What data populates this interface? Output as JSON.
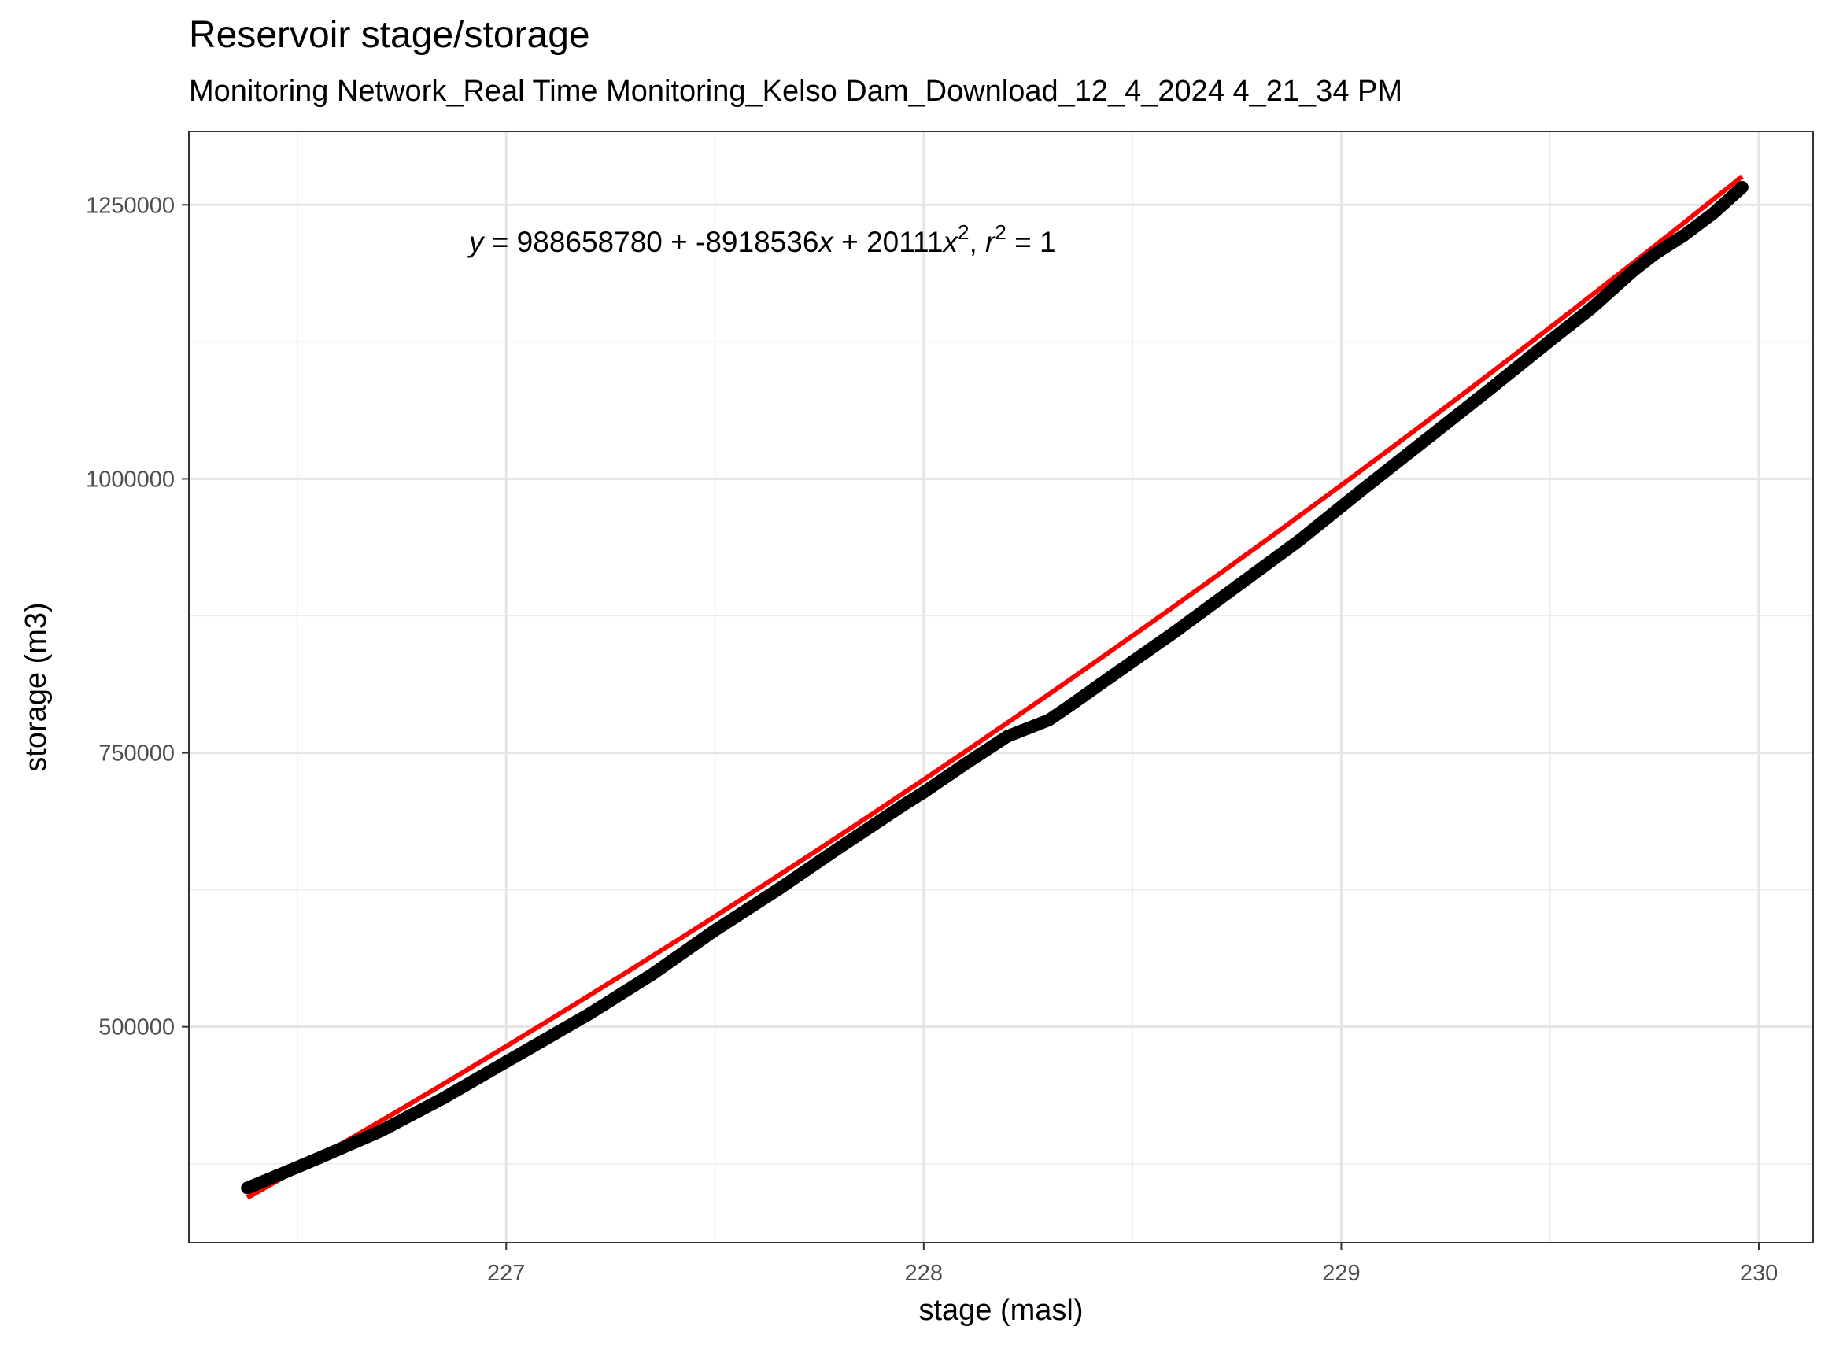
{
  "chart_data": {
    "type": "scatter",
    "title": "Reservoir stage/storage",
    "subtitle": "Monitoring Network_Real Time Monitoring_Kelso Dam_Download_12_4_2024 4_21_34 PM",
    "xlabel": "stage (masl)",
    "ylabel": "storage (m3)",
    "xlim": [
      226.24,
      230.13
    ],
    "ylim": [
      303000,
      1317000
    ],
    "x_ticks": [
      227,
      228,
      229,
      230
    ],
    "x_tick_labels": [
      "227",
      "228",
      "229",
      "230"
    ],
    "x_minor_ticks": [
      226.5,
      227.5,
      228.5,
      229.5
    ],
    "y_ticks": [
      500000,
      750000,
      1000000,
      1250000
    ],
    "y_tick_labels": [
      "500000",
      "750000",
      "1000000",
      "1250000"
    ],
    "y_minor_ticks": [
      375000,
      625000,
      875000,
      1125000
    ],
    "grid": true,
    "fit": {
      "type": "quadratic",
      "intercept": 988658780,
      "b1": -8918536,
      "b2": 20111,
      "r2": 1,
      "x_range": [
        226.38,
        229.96
      ],
      "color": "#ff0000",
      "annotation": {
        "y": "y",
        "eq_part1": " = 988658780 + -8918536",
        "x1": "x",
        "eq_part2": " + 20111",
        "x2": "x",
        "sup1": "2",
        "comma": ",  ",
        "r": "r",
        "sup2": "2",
        "eq_part3": " = 1"
      }
    },
    "points": {
      "color": "#000000",
      "x": [
        226.38,
        226.45,
        226.55,
        226.7,
        226.85,
        227.0,
        227.05,
        227.2,
        227.35,
        227.5,
        227.65,
        227.8,
        227.95,
        228.0,
        228.1,
        228.2,
        228.3,
        228.35,
        228.45,
        228.6,
        228.75,
        228.9,
        229.05,
        229.2,
        229.35,
        229.5,
        229.6,
        229.7,
        229.75,
        229.82,
        229.89,
        229.96
      ],
      "y": [
        353000,
        364000,
        380000,
        405000,
        435000,
        468000,
        479000,
        512000,
        548000,
        588000,
        625000,
        664000,
        702000,
        714000,
        740000,
        765000,
        780000,
        793000,
        820000,
        860000,
        902000,
        944000,
        990000,
        1035000,
        1080000,
        1126000,
        1156000,
        1190000,
        1205000,
        1222000,
        1242000,
        1266000
      ]
    }
  }
}
